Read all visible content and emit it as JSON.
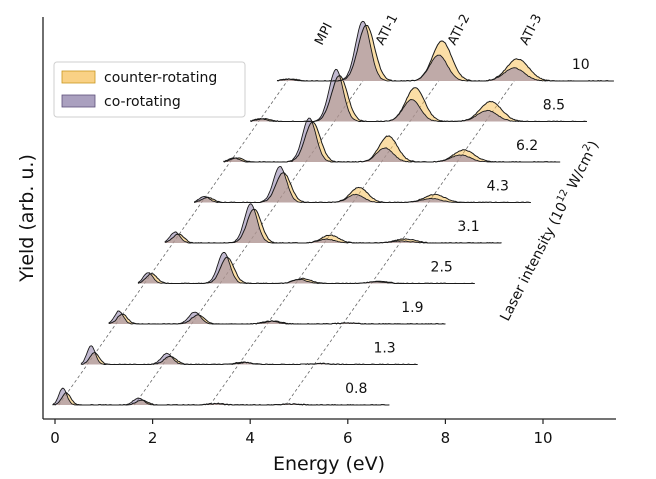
{
  "chart_data": {
    "type": "area",
    "xlabel": "Energy (eV)",
    "ylabel": "Yield (arb. u.)",
    "xlim": [
      -0.3,
      11.5
    ],
    "x_ticks": [
      0,
      2,
      4,
      6,
      8,
      10
    ],
    "intensity_axis_label": "Laser intensity (10",
    "intensity_axis_sup": "12",
    "intensity_axis_unit": " W/cm",
    "intensity_axis_unit_sup": "2",
    "intensity_axis_close": ")",
    "legend": {
      "position": "upper-left",
      "entries": [
        {
          "label": "counter-rotating",
          "color": "#f7c25c"
        },
        {
          "label": "co-rotating",
          "color": "#8e80a9"
        }
      ]
    },
    "overlap_color": "#c9ab9f",
    "peak_labels": [
      "MPI",
      "ATI-1",
      "ATI-2",
      "ATI-3"
    ],
    "photon_energy_eV": 1.55,
    "traces": [
      {
        "intensity": "0.8",
        "mpi_peak_eV": 0.2
      },
      {
        "intensity": "1.3",
        "mpi_peak_eV": 0.78
      },
      {
        "intensity": "1.9",
        "mpi_peak_eV": 1.35
      },
      {
        "intensity": "2.5",
        "mpi_peak_eV": 1.95
      },
      {
        "intensity": "3.1",
        "mpi_peak_eV": 2.5
      },
      {
        "intensity": "4.3",
        "mpi_peak_eV": 3.1
      },
      {
        "intensity": "6.2",
        "mpi_peak_eV": 3.7
      },
      {
        "intensity": "8.5",
        "mpi_peak_eV": 4.25
      },
      {
        "intensity": "10",
        "mpi_peak_eV": 4.8
      }
    ]
  }
}
